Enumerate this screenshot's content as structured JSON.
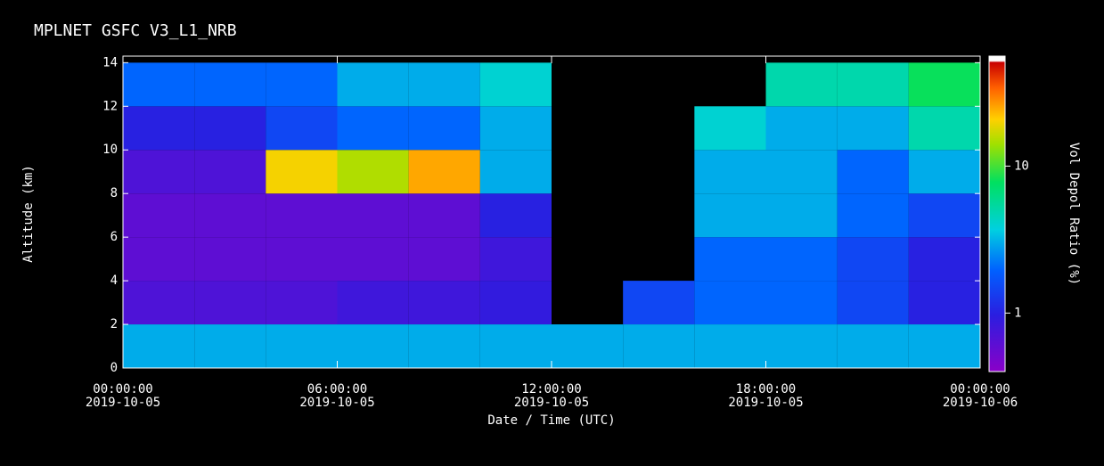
{
  "chart_data": {
    "type": "heatmap",
    "title": "MPLNET GSFC V3_L1_NRB",
    "x_label": "Date / Time (UTC)",
    "y_label": "Altitude (km)",
    "colorbar_label": "Vol Depol Ratio (%)",
    "xlim": [
      0,
      24
    ],
    "xticks": [
      {
        "value": 0,
        "label": "00:00:00"
      },
      {
        "value": 6,
        "label": "06:00:00"
      },
      {
        "value": 12,
        "label": "12:00:00"
      },
      {
        "value": 18,
        "label": "18:00:00"
      },
      {
        "value": 24,
        "label": "00:00:00"
      }
    ],
    "xtick_dates": [
      "2019-10-05",
      "2019-10-05",
      "2019-10-05",
      "2019-10-05",
      "2019-10-06"
    ],
    "ylim": [
      0,
      14.3
    ],
    "yticks": [
      0,
      2,
      4,
      6,
      8,
      10,
      12,
      14
    ],
    "x_bins": [
      0,
      2,
      4,
      6,
      8,
      10,
      12,
      14,
      16,
      18,
      20,
      22,
      24
    ],
    "y_bins": [
      0,
      2,
      4,
      6,
      8,
      10,
      12,
      14
    ],
    "values": [
      [
        3,
        3,
        3,
        3,
        3,
        3,
        3,
        3,
        3,
        3,
        3,
        3
      ],
      [
        0.7,
        0.7,
        0.7,
        0.8,
        0.8,
        0.9,
        null,
        1.5,
        2,
        2,
        1.5,
        1
      ],
      [
        0.6,
        0.6,
        0.6,
        0.6,
        0.6,
        0.8,
        null,
        null,
        2,
        2,
        1.5,
        1
      ],
      [
        0.6,
        0.6,
        0.6,
        0.6,
        0.6,
        1,
        null,
        null,
        3,
        3,
        2,
        1.5
      ],
      [
        0.7,
        0.7,
        20,
        15,
        25,
        3,
        null,
        null,
        3,
        3,
        2,
        3
      ],
      [
        1,
        1,
        1.5,
        2,
        2,
        3,
        null,
        null,
        4,
        3,
        3,
        5
      ],
      [
        2,
        2,
        2,
        3,
        3,
        4,
        null,
        null,
        null,
        5,
        5,
        8
      ]
    ],
    "clim": [
      0.4,
      56
    ],
    "colorbar_log": true,
    "colorbar_ticks": [
      1,
      10
    ]
  }
}
